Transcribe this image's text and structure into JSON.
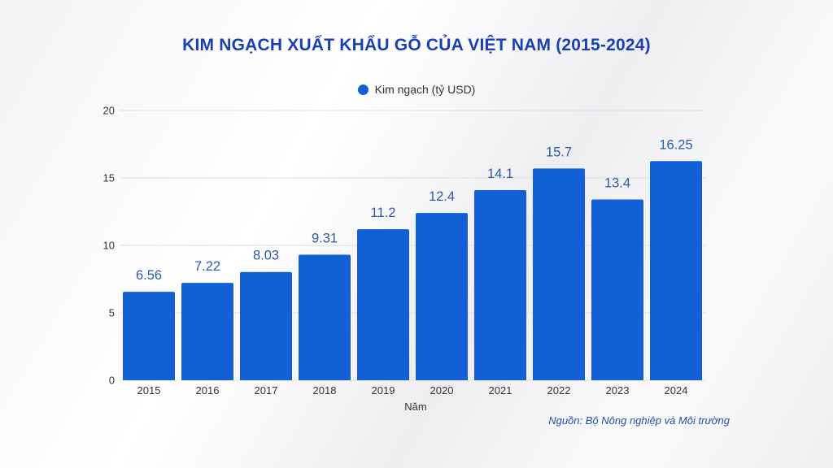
{
  "chart_data": {
    "type": "bar",
    "title": "KIM NGẠCH XUẤT KHẨU GỖ CỦA VIỆT NAM (2015-2024)",
    "xlabel": "Năm",
    "ylabel": "",
    "categories": [
      "2015",
      "2016",
      "2017",
      "2018",
      "2019",
      "2020",
      "2021",
      "2022",
      "2023",
      "2024"
    ],
    "series": [
      {
        "name": "Kim ngạch (tỷ USD)",
        "values": [
          6.56,
          7.22,
          8.03,
          9.31,
          11.2,
          12.4,
          14.1,
          15.7,
          13.4,
          16.25
        ],
        "labels": [
          "6.56",
          "7.22",
          "8.03",
          "9.31",
          "11.2",
          "12.4",
          "14.1",
          "15.7",
          "13.4",
          "16.25"
        ]
      }
    ],
    "ylim": [
      0,
      20
    ],
    "yticks": [
      "0",
      "5",
      "10",
      "15",
      "20"
    ],
    "grid": true,
    "legend": "top-center",
    "source": "Nguồn: Bộ Nông nghiệp và Môi trường"
  },
  "colors": {
    "bar": "#1160d6",
    "title": "#1a3fb0",
    "data_label": "#2a5ca8",
    "grid": "#dddde2"
  }
}
